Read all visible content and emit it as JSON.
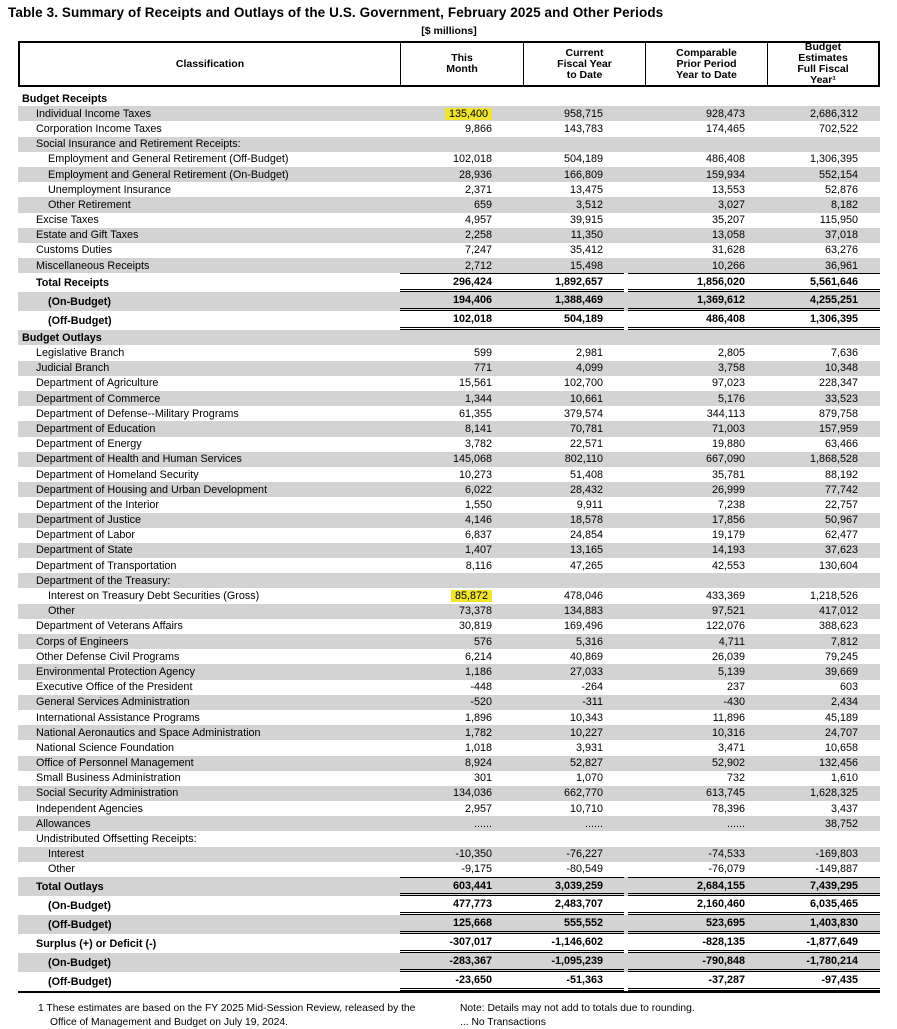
{
  "title": "Table 3. Summary of Receipts and Outlays of the U.S. Government, February 2025 and Other Periods",
  "units_label": "[$ millions]",
  "colors": {
    "row_shade": "#d3d3d3",
    "highlight": "#efe42f",
    "border": "#000000"
  },
  "columns": [
    "Classification",
    "This\nMonth",
    "Current\nFiscal Year\nto Date",
    "Comparable\nPrior Period\nYear to Date",
    "Budget\nEstimates\nFull Fiscal\nYear¹"
  ],
  "table": {
    "rows": [
      {
        "label": "Budget Receipts",
        "values": [
          "",
          "",
          "",
          ""
        ],
        "style": "section",
        "shaded": false
      },
      {
        "label": "Individual Income Taxes",
        "values": [
          "135,400",
          "958,715",
          "928,473",
          "2,686,312"
        ],
        "style": "item",
        "shaded": true,
        "highlight": 0
      },
      {
        "label": "Corporation Income Taxes",
        "values": [
          "9,866",
          "143,783",
          "174,465",
          "702,522"
        ],
        "style": "item",
        "shaded": false
      },
      {
        "label": "Social Insurance and Retirement Receipts:",
        "values": [
          "",
          "",
          "",
          ""
        ],
        "style": "sub",
        "shaded": true
      },
      {
        "label": "Employment and General Retirement (Off-Budget)",
        "values": [
          "102,018",
          "504,189",
          "486,408",
          "1,306,395"
        ],
        "style": "item1",
        "shaded": false
      },
      {
        "label": "Employment and General Retirement (On-Budget)",
        "values": [
          "28,936",
          "166,809",
          "159,934",
          "552,154"
        ],
        "style": "item1",
        "shaded": true
      },
      {
        "label": "Unemployment Insurance",
        "values": [
          "2,371",
          "13,475",
          "13,553",
          "52,876"
        ],
        "style": "item1",
        "shaded": false
      },
      {
        "label": "Other Retirement",
        "values": [
          "659",
          "3,512",
          "3,027",
          "8,182"
        ],
        "style": "item1",
        "shaded": true
      },
      {
        "label": "Excise Taxes",
        "values": [
          "4,957",
          "39,915",
          "35,207",
          "115,950"
        ],
        "style": "item",
        "shaded": false
      },
      {
        "label": "Estate and Gift Taxes",
        "values": [
          "2,258",
          "11,350",
          "13,058",
          "37,018"
        ],
        "style": "item",
        "shaded": true
      },
      {
        "label": "Customs Duties",
        "values": [
          "7,247",
          "35,412",
          "31,628",
          "63,276"
        ],
        "style": "item",
        "shaded": false
      },
      {
        "label": "Miscellaneous Receipts",
        "values": [
          "2,712",
          "15,498",
          "10,266",
          "36,961"
        ],
        "style": "item",
        "shaded": true
      },
      {
        "label": "Total Receipts",
        "values": [
          "296,424",
          "1,892,657",
          "1,856,020",
          "5,561,646"
        ],
        "style": "total",
        "shaded": false
      },
      {
        "label": "(On-Budget)",
        "values": [
          "194,406",
          "1,388,469",
          "1,369,612",
          "4,255,251"
        ],
        "style": "tsub",
        "shaded": true
      },
      {
        "label": "(Off-Budget)",
        "values": [
          "102,018",
          "504,189",
          "486,408",
          "1,306,395"
        ],
        "style": "tsub",
        "shaded": false
      },
      {
        "label": "Budget Outlays",
        "values": [
          "",
          "",
          "",
          ""
        ],
        "style": "section",
        "shaded": true
      },
      {
        "label": "Legislative Branch",
        "values": [
          "599",
          "2,981",
          "2,805",
          "7,636"
        ],
        "style": "item",
        "shaded": false
      },
      {
        "label": "Judicial Branch",
        "values": [
          "771",
          "4,099",
          "3,758",
          "10,348"
        ],
        "style": "item",
        "shaded": true
      },
      {
        "label": "Department of Agriculture",
        "values": [
          "15,561",
          "102,700",
          "97,023",
          "228,347"
        ],
        "style": "item",
        "shaded": false
      },
      {
        "label": "Department of Commerce",
        "values": [
          "1,344",
          "10,661",
          "5,176",
          "33,523"
        ],
        "style": "item",
        "shaded": true
      },
      {
        "label": "Department of Defense--Military Programs",
        "values": [
          "61,355",
          "379,574",
          "344,113",
          "879,758"
        ],
        "style": "item",
        "shaded": false
      },
      {
        "label": "Department of Education",
        "values": [
          "8,141",
          "70,781",
          "71,003",
          "157,959"
        ],
        "style": "item",
        "shaded": true
      },
      {
        "label": "Department of Energy",
        "values": [
          "3,782",
          "22,571",
          "19,880",
          "63,466"
        ],
        "style": "item",
        "shaded": false
      },
      {
        "label": "Department of Health and Human Services",
        "values": [
          "145,068",
          "802,110",
          "667,090",
          "1,868,528"
        ],
        "style": "item",
        "shaded": true
      },
      {
        "label": "Department of Homeland Security",
        "values": [
          "10,273",
          "51,408",
          "35,781",
          "88,192"
        ],
        "style": "item",
        "shaded": false
      },
      {
        "label": "Department of Housing and Urban Development",
        "values": [
          "6,022",
          "28,432",
          "26,999",
          "77,742"
        ],
        "style": "item",
        "shaded": true
      },
      {
        "label": "Department of the Interior",
        "values": [
          "1,550",
          "9,911",
          "7,238",
          "22,757"
        ],
        "style": "item",
        "shaded": false
      },
      {
        "label": "Department of Justice",
        "values": [
          "4,146",
          "18,578",
          "17,856",
          "50,967"
        ],
        "style": "item",
        "shaded": true
      },
      {
        "label": "Department of Labor",
        "values": [
          "6,837",
          "24,854",
          "19,179",
          "62,477"
        ],
        "style": "item",
        "shaded": false
      },
      {
        "label": "Department of State",
        "values": [
          "1,407",
          "13,165",
          "14,193",
          "37,623"
        ],
        "style": "item",
        "shaded": true
      },
      {
        "label": "Department of Transportation",
        "values": [
          "8,116",
          "47,265",
          "42,553",
          "130,604"
        ],
        "style": "item",
        "shaded": false
      },
      {
        "label": "Department of the Treasury:",
        "values": [
          "",
          "",
          "",
          ""
        ],
        "style": "sub",
        "shaded": true
      },
      {
        "label": "Interest on Treasury Debt Securities (Gross)",
        "values": [
          "85,872",
          "478,046",
          "433,369",
          "1,218,526"
        ],
        "style": "item1",
        "shaded": false,
        "highlight": 0
      },
      {
        "label": "Other",
        "values": [
          "73,378",
          "134,883",
          "97,521",
          "417,012"
        ],
        "style": "item1",
        "shaded": true
      },
      {
        "label": "Department of Veterans Affairs",
        "values": [
          "30,819",
          "169,496",
          "122,076",
          "388,623"
        ],
        "style": "item",
        "shaded": false
      },
      {
        "label": "Corps of Engineers",
        "values": [
          "576",
          "5,316",
          "4,711",
          "7,812"
        ],
        "style": "item",
        "shaded": true
      },
      {
        "label": "Other Defense Civil Programs",
        "values": [
          "6,214",
          "40,869",
          "26,039",
          "79,245"
        ],
        "style": "item",
        "shaded": false
      },
      {
        "label": "Environmental Protection Agency",
        "values": [
          "1,186",
          "27,033",
          "5,139",
          "39,669"
        ],
        "style": "item",
        "shaded": true
      },
      {
        "label": "Executive Office of the President",
        "values": [
          "-448",
          "-264",
          "237",
          "603"
        ],
        "style": "item",
        "shaded": false
      },
      {
        "label": "General Services Administration",
        "values": [
          "-520",
          "-311",
          "-430",
          "2,434"
        ],
        "style": "item",
        "shaded": true
      },
      {
        "label": "International Assistance Programs",
        "values": [
          "1,896",
          "10,343",
          "11,896",
          "45,189"
        ],
        "style": "item",
        "shaded": false
      },
      {
        "label": "National Aeronautics and Space Administration",
        "values": [
          "1,782",
          "10,227",
          "10,316",
          "24,707"
        ],
        "style": "item",
        "shaded": true
      },
      {
        "label": "National Science Foundation",
        "values": [
          "1,018",
          "3,931",
          "3,471",
          "10,658"
        ],
        "style": "item",
        "shaded": false
      },
      {
        "label": "Office of Personnel Management",
        "values": [
          "8,924",
          "52,827",
          "52,902",
          "132,456"
        ],
        "style": "item",
        "shaded": true
      },
      {
        "label": "Small Business Administration",
        "values": [
          "301",
          "1,070",
          "732",
          "1,610"
        ],
        "style": "item",
        "shaded": false
      },
      {
        "label": "Social Security Administration",
        "values": [
          "134,036",
          "662,770",
          "613,745",
          "1,628,325"
        ],
        "style": "item",
        "shaded": true
      },
      {
        "label": "Independent Agencies",
        "values": [
          "2,957",
          "10,710",
          "78,396",
          "3,437"
        ],
        "style": "item",
        "shaded": false
      },
      {
        "label": "Allowances",
        "values": [
          "......",
          "......",
          "......",
          "38,752"
        ],
        "style": "item",
        "shaded": true
      },
      {
        "label": "Undistributed Offsetting Receipts:",
        "values": [
          "",
          "",
          "",
          ""
        ],
        "style": "sub",
        "shaded": false
      },
      {
        "label": "Interest",
        "values": [
          "-10,350",
          "-76,227",
          "-74,533",
          "-169,803"
        ],
        "style": "item1",
        "shaded": true
      },
      {
        "label": "Other",
        "values": [
          "-9,175",
          "-80,549",
          "-76,079",
          "-149,887"
        ],
        "style": "item1",
        "shaded": false
      },
      {
        "label": "Total Outlays",
        "values": [
          "603,441",
          "3,039,259",
          "2,684,155",
          "7,439,295"
        ],
        "style": "total",
        "shaded": true
      },
      {
        "label": "(On-Budget)",
        "values": [
          "477,773",
          "2,483,707",
          "2,160,460",
          "6,035,465"
        ],
        "style": "tsub",
        "shaded": false
      },
      {
        "label": "(Off-Budget)",
        "values": [
          "125,668",
          "555,552",
          "523,695",
          "1,403,830"
        ],
        "style": "tsub",
        "shaded": true
      },
      {
        "label": "Surplus (+) or Deficit (-)",
        "values": [
          "-307,017",
          "-1,146,602",
          "-828,135",
          "-1,877,649"
        ],
        "style": "total_nt",
        "shaded": false
      },
      {
        "label": "(On-Budget)",
        "values": [
          "-283,367",
          "-1,095,239",
          "-790,848",
          "-1,780,214"
        ],
        "style": "tsub",
        "shaded": true
      },
      {
        "label": "(Off-Budget)",
        "values": [
          "-23,650",
          "-51,363",
          "-37,287",
          "-97,435"
        ],
        "style": "tsub",
        "shaded": false
      }
    ]
  },
  "footnotes": {
    "left_line1": "1 These estimates are based on the FY 2025 Mid-Session Review, released by the",
    "left_line2": "Office of Management and Budget on July 19, 2024.",
    "right_line1": "Note: Details may not add to totals due to rounding.",
    "right_line2": "... No Transactions"
  }
}
